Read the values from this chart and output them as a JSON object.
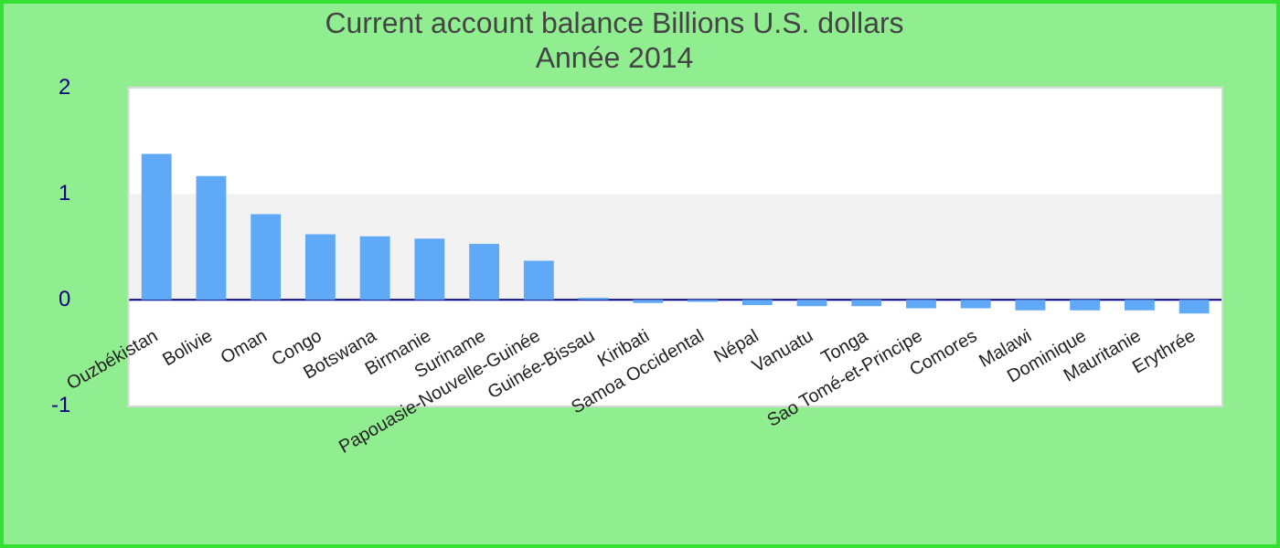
{
  "chart_data": {
    "type": "bar",
    "title": "Current account balance Billions U.S. dollars",
    "subtitle": "Année 2014",
    "categories": [
      "Ouzbékistan",
      "Bolivie",
      "Oman",
      "Congo",
      "Botswana",
      "Birmanie",
      "Suriname",
      "Papouasie-Nouvelle-Guinée",
      "Guinée-Bissau",
      "Kiribati",
      "Samoa Occidental",
      "Népal",
      "Vanuatu",
      "Tonga",
      "Sao Tomé-et-Principe",
      "Comores",
      "Malawi",
      "Dominique",
      "Mauritanie",
      "Erythrée"
    ],
    "values": [
      1.38,
      1.17,
      0.81,
      0.62,
      0.6,
      0.58,
      0.53,
      0.37,
      0.02,
      -0.03,
      -0.02,
      -0.05,
      -0.06,
      -0.06,
      -0.08,
      -0.08,
      -0.1,
      -0.1,
      -0.1,
      -0.13
    ],
    "color": "#60a9f6",
    "ylim": [
      -1,
      2
    ],
    "yticks": [
      -1,
      0,
      1,
      2
    ],
    "legend": false,
    "bands": [
      {
        "axis": "y",
        "from": 0,
        "to": 1,
        "color": "#f2f2f2"
      }
    ],
    "ref_lines": [
      {
        "axis": "y",
        "value": 0,
        "color": "#000080"
      }
    ]
  }
}
